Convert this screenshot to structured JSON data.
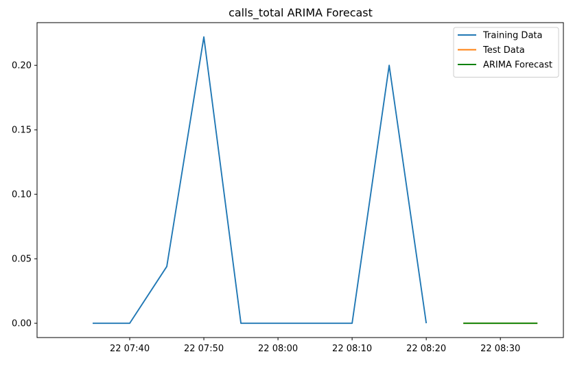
{
  "chart_data": {
    "type": "line",
    "title": "calls_total ARIMA Forecast",
    "xlabel": "",
    "ylabel": "",
    "ylim": [
      -0.0111,
      0.2331
    ],
    "xlim_minutes": [
      -7.5,
      63.5
    ],
    "x_ticks": [
      {
        "value": 5,
        "label": "22 07:40"
      },
      {
        "value": 15,
        "label": "22 07:50"
      },
      {
        "value": 25,
        "label": "22 08:00"
      },
      {
        "value": 35,
        "label": "22 08:10"
      },
      {
        "value": 45,
        "label": "22 08:20"
      },
      {
        "value": 55,
        "label": "22 08:30"
      }
    ],
    "y_ticks": [
      {
        "value": 0.0,
        "label": "0.00"
      },
      {
        "value": 0.05,
        "label": "0.05"
      },
      {
        "value": 0.1,
        "label": "0.10"
      },
      {
        "value": 0.15,
        "label": "0.15"
      },
      {
        "value": 0.2,
        "label": "0.20"
      }
    ],
    "series": [
      {
        "name": "Training Data",
        "color": "#1f77b4",
        "x": [
          "22 07:35",
          "22 07:40",
          "22 07:45",
          "22 07:50",
          "22 07:55",
          "22 08:00",
          "22 08:05",
          "22 08:10",
          "22 08:15",
          "22 08:20"
        ],
        "values": [
          0.0,
          0.0,
          0.044,
          0.222,
          0.0,
          0.0,
          0.0,
          0.0,
          0.2,
          0.0
        ]
      },
      {
        "name": "Test Data",
        "color": "#ff7f0e",
        "x": [
          "22 08:25",
          "22 08:30",
          "22 08:35"
        ],
        "values": [
          0.0,
          0.0,
          0.0
        ]
      },
      {
        "name": "ARIMA Forecast",
        "color": "#008000",
        "x": [
          "22 08:25",
          "22 08:30",
          "22 08:35"
        ],
        "values": [
          0.0,
          0.0,
          0.0
        ]
      }
    ],
    "legend_position": "top-right",
    "grid": false
  }
}
